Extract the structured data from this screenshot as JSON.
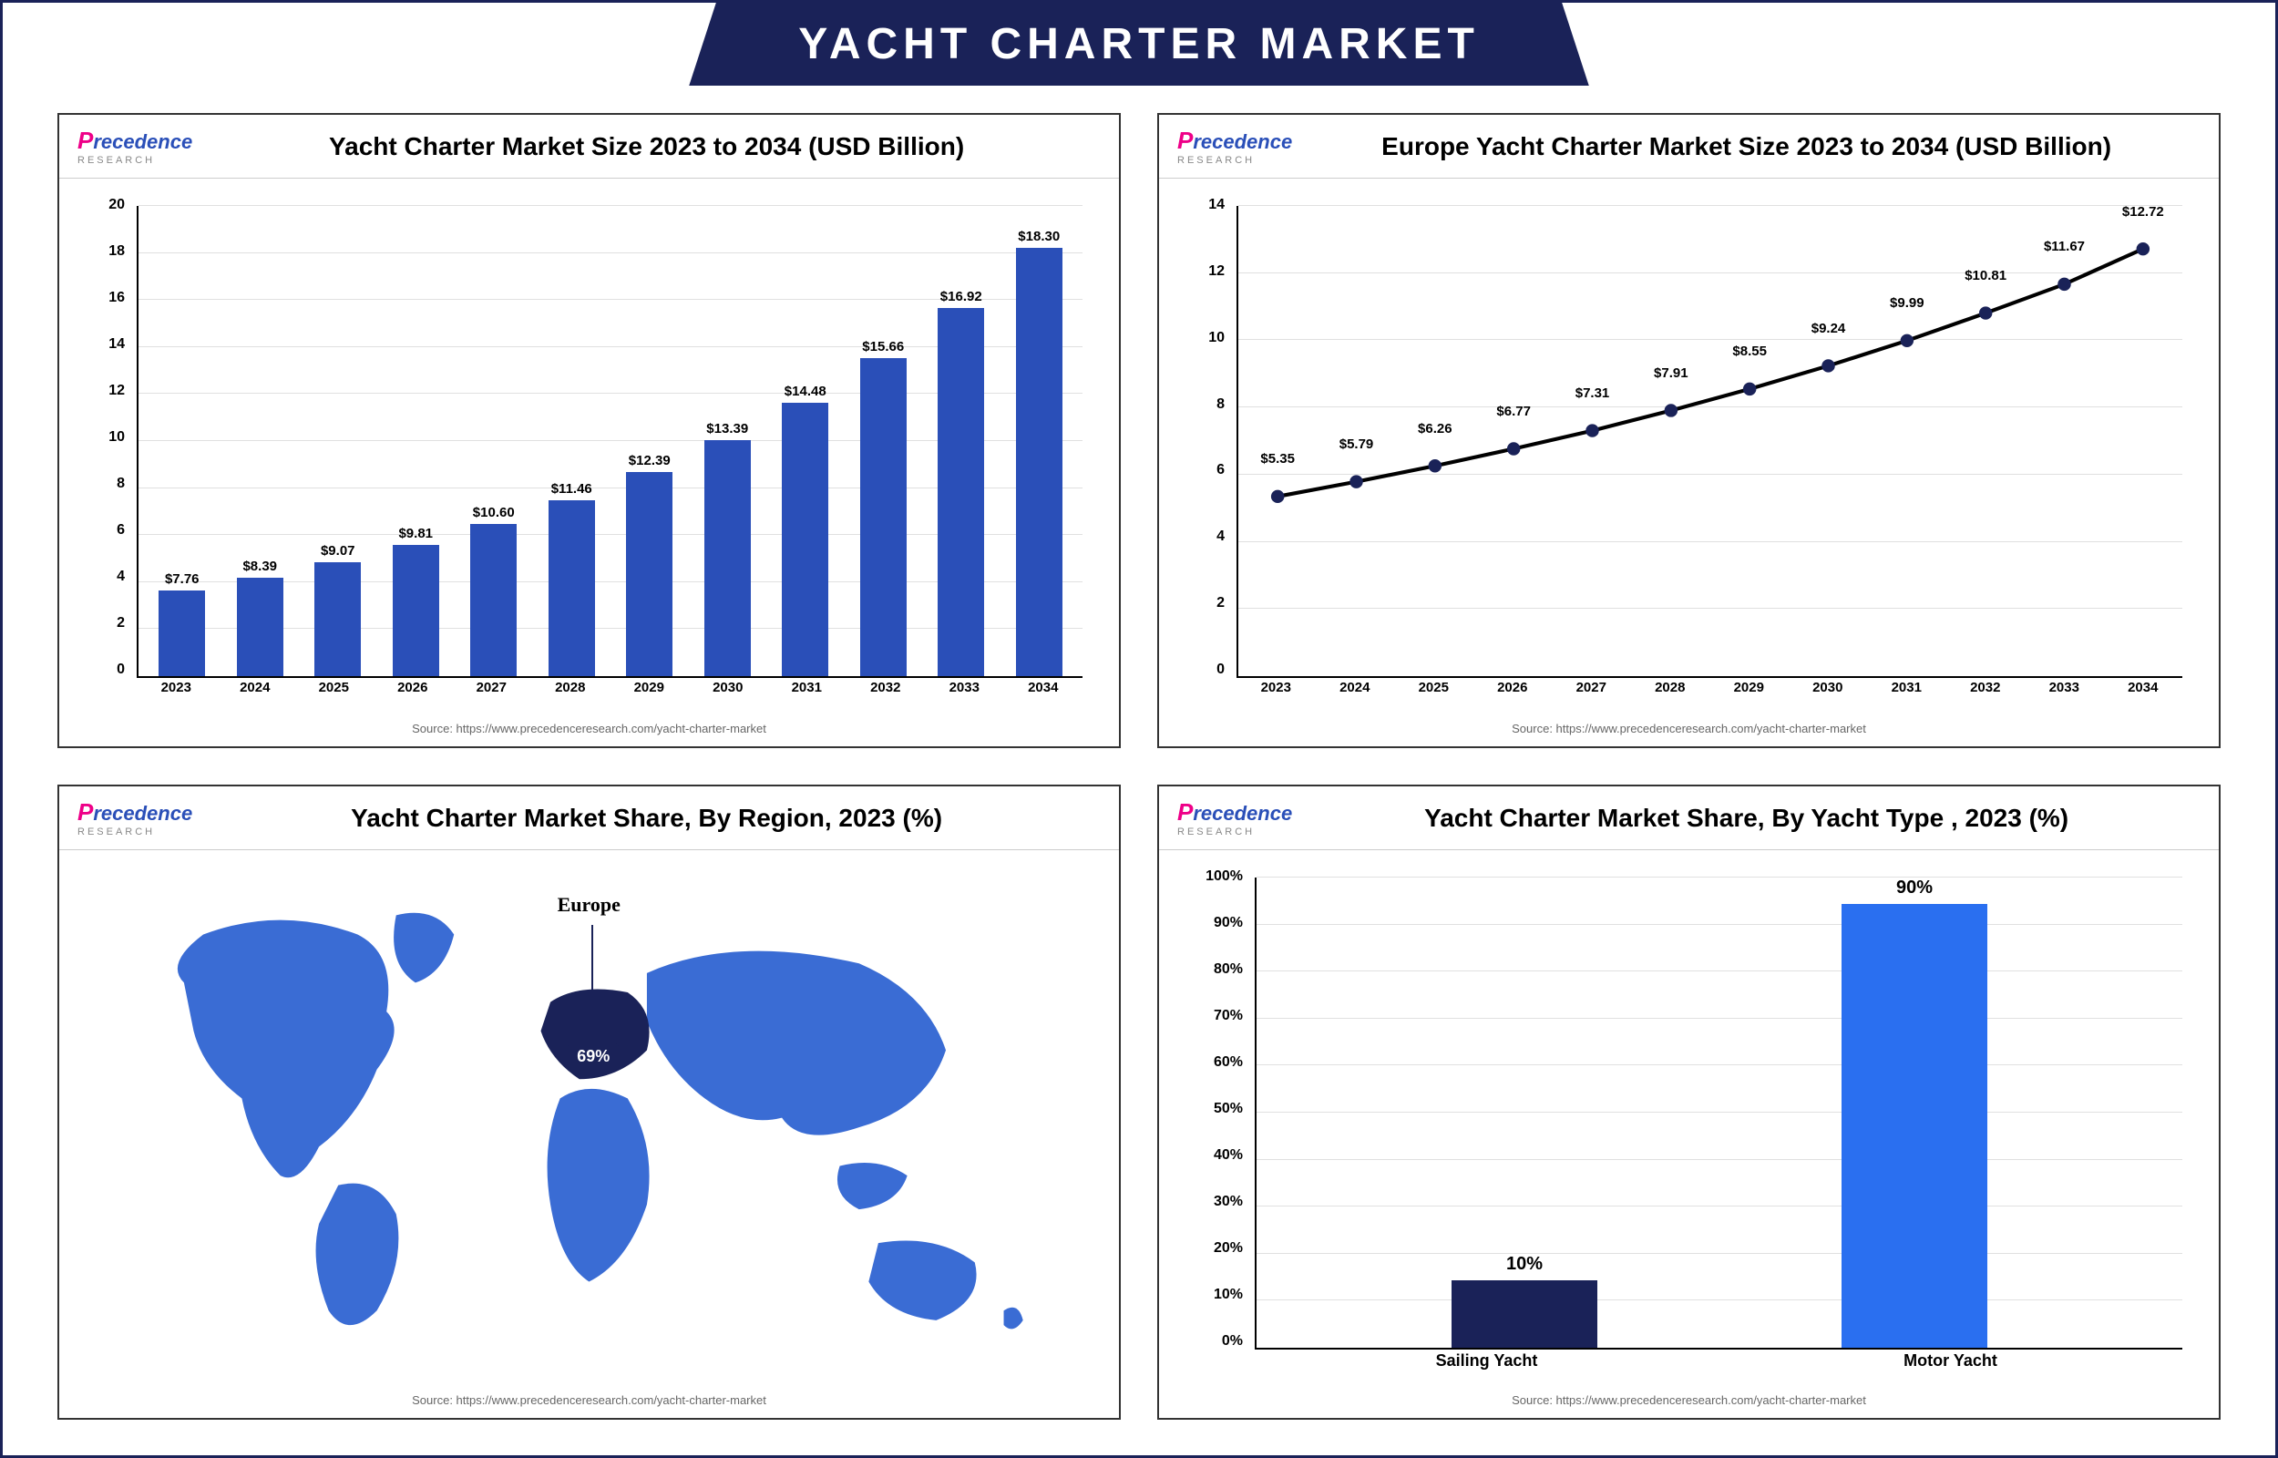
{
  "title": "YACHT CHARTER MARKET",
  "logo_text": "recedence",
  "logo_sub": "RESEARCH",
  "source": "Source: https://www.precedenceresearch.com/yacht-charter-market",
  "panel1": {
    "title": "Yacht Charter Market Size 2023 to 2034 (USD Billion)",
    "type": "bar",
    "bar_color": "#2a4fb8",
    "grid_color": "#e0e0e0",
    "ymax": 20,
    "ytick_step": 2,
    "yticks": [
      "0",
      "2",
      "4",
      "6",
      "8",
      "10",
      "12",
      "14",
      "16",
      "18",
      "20"
    ],
    "categories": [
      "2023",
      "2024",
      "2025",
      "2026",
      "2027",
      "2028",
      "2029",
      "2030",
      "2031",
      "2032",
      "2033",
      "2034"
    ],
    "values": [
      7.76,
      8.39,
      9.07,
      9.81,
      10.6,
      11.46,
      12.39,
      13.39,
      14.48,
      15.66,
      16.92,
      18.3
    ],
    "value_labels": [
      "$7.76",
      "$8.39",
      "$9.07",
      "$9.81",
      "$10.60",
      "$11.46",
      "$12.39",
      "$13.39",
      "$14.48",
      "$15.66",
      "$16.92",
      "$18.30"
    ]
  },
  "panel2": {
    "title": "Europe Yacht Charter Market Size 2023 to 2034 (USD Billion)",
    "type": "line",
    "line_color": "#000000",
    "marker_color": "#1a2258",
    "grid_color": "#e0e0e0",
    "ymax": 14,
    "ytick_step": 2,
    "yticks": [
      "0",
      "2",
      "4",
      "6",
      "8",
      "10",
      "12",
      "14"
    ],
    "categories": [
      "2023",
      "2024",
      "2025",
      "2026",
      "2027",
      "2028",
      "2029",
      "2030",
      "2031",
      "2032",
      "2033",
      "2034"
    ],
    "values": [
      5.35,
      5.79,
      6.26,
      6.77,
      7.31,
      7.91,
      8.55,
      9.24,
      9.99,
      10.81,
      11.67,
      12.72
    ],
    "value_labels": [
      "$5.35",
      "$5.79",
      "$6.26",
      "$6.77",
      "$7.31",
      "$7.91",
      "$8.55",
      "$9.24",
      "$9.99",
      "$10.81",
      "$11.67",
      "$12.72"
    ]
  },
  "panel3": {
    "title": "Yacht Charter Market Share, By Region, 2023 (%)",
    "type": "map",
    "highlight_region": "Europe",
    "highlight_value": "69%",
    "base_color": "#3a6cd4",
    "highlight_color": "#1a2258"
  },
  "panel4": {
    "title": "Yacht Charter Market Share, By Yacht Type , 2023 (%)",
    "type": "bar",
    "grid_color": "#e0e0e0",
    "ymax": 100,
    "ytick_step": 10,
    "yticks": [
      "0%",
      "10%",
      "20%",
      "30%",
      "40%",
      "50%",
      "60%",
      "70%",
      "80%",
      "90%",
      "100%"
    ],
    "categories": [
      "Sailing Yacht",
      "Motor Yacht"
    ],
    "values": [
      10,
      90
    ],
    "value_labels": [
      "10%",
      "90%"
    ],
    "bar_colors": [
      "#1a2258",
      "#2a6ff0"
    ]
  }
}
